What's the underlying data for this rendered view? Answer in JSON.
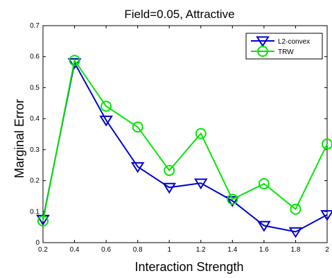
{
  "chart_data": {
    "type": "line",
    "title": "Field=0.05, Attractive",
    "xlabel": "Interaction Strength",
    "ylabel": "Marginal Error",
    "xlim": [
      0.2,
      2
    ],
    "ylim": [
      0,
      0.7
    ],
    "xticks": [
      "0.2",
      "0.4",
      "0.6",
      "0.8",
      "1",
      "1.2",
      "1.4",
      "1.6",
      "1.8",
      "2"
    ],
    "yticks": [
      "0",
      "0.1",
      "0.2",
      "0.3",
      "0.4",
      "0.5",
      "0.6",
      "0.7"
    ],
    "x": [
      0.2,
      0.4,
      0.6,
      0.8,
      1.0,
      1.2,
      1.4,
      1.6,
      1.8,
      2.0
    ],
    "series": [
      {
        "name": "L2-convex",
        "color": "#0000cc",
        "marker": "triangle-down",
        "values": [
          0.075,
          0.58,
          0.395,
          0.245,
          0.178,
          0.192,
          0.135,
          0.055,
          0.035,
          0.09
        ]
      },
      {
        "name": "TRW",
        "color": "#00e600",
        "marker": "circle",
        "values": [
          0.07,
          0.588,
          0.44,
          0.373,
          0.233,
          0.352,
          0.14,
          0.19,
          0.108,
          0.318
        ]
      }
    ],
    "grid": false,
    "legend_position": "top-right"
  }
}
